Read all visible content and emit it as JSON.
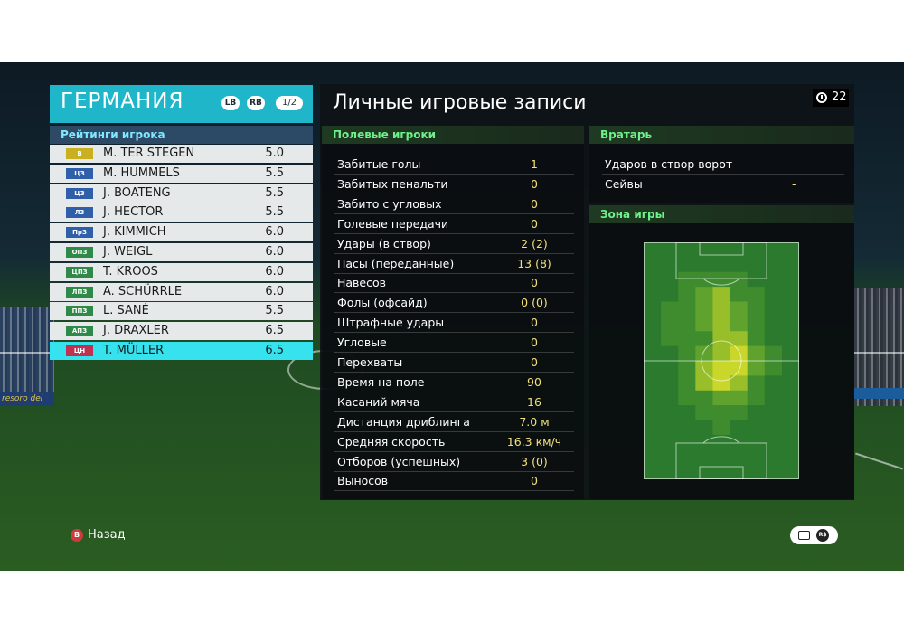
{
  "team": {
    "name": "ГЕРМАНИЯ",
    "lb_label": "LB",
    "rb_label": "RB",
    "page_indicator": "1/2"
  },
  "ratings_header": "Рейтинги игрока",
  "players": [
    {
      "pos": "В",
      "name": "M. TER STEGEN",
      "rating": "5.0",
      "pos_color": "#c8b020"
    },
    {
      "pos": "ЦЗ",
      "name": "M. HUMMELS",
      "rating": "5.5",
      "pos_color": "#2f5fa8"
    },
    {
      "pos": "ЦЗ",
      "name": "J. BOATENG",
      "rating": "5.5",
      "pos_color": "#2f5fa8"
    },
    {
      "pos": "ЛЗ",
      "name": "J. HECTOR",
      "rating": "5.5",
      "pos_color": "#2f5fa8"
    },
    {
      "pos": "ПрЗ",
      "name": "J. KIMMICH",
      "rating": "6.0",
      "pos_color": "#2f5fa8"
    },
    {
      "pos": "ОПЗ",
      "name": "J. WEIGL",
      "rating": "6.0",
      "pos_color": "#2f8a4a"
    },
    {
      "pos": "ЦПЗ",
      "name": "T. KROOS",
      "rating": "6.0",
      "pos_color": "#2f8a4a"
    },
    {
      "pos": "ЛПЗ",
      "name": "A. SCHÜRRLE",
      "rating": "6.0",
      "pos_color": "#2f8a4a"
    },
    {
      "pos": "ППЗ",
      "name": "L. SANÉ",
      "rating": "5.5",
      "pos_color": "#2f8a4a"
    },
    {
      "pos": "АПЗ",
      "name": "J. DRAXLER",
      "rating": "6.5",
      "pos_color": "#2f8a4a"
    },
    {
      "pos": "ЦН",
      "name": "T. MÜLLER",
      "rating": "6.5",
      "pos_color": "#c03050",
      "selected": true
    }
  ],
  "title": "Личные игровые записи",
  "timer": "22",
  "field_players": {
    "header": "Полевые игроки",
    "stats": [
      {
        "label": "Забитые голы",
        "value": "1"
      },
      {
        "label": "Забитых пенальти",
        "value": "0"
      },
      {
        "label": "Забито с угловых",
        "value": "0"
      },
      {
        "label": "Голевые передачи",
        "value": "0"
      },
      {
        "label": "Удары (в створ)",
        "value": "2 (2)"
      },
      {
        "label": "Пасы (переданные)",
        "value": "13 (8)"
      },
      {
        "label": "Навесов",
        "value": "0"
      },
      {
        "label": "Фолы (офсайд)",
        "value": "0 (0)"
      },
      {
        "label": "Штрафные удары",
        "value": "0"
      },
      {
        "label": "Угловые",
        "value": "0"
      },
      {
        "label": "Перехваты",
        "value": "0"
      },
      {
        "label": "Время на поле",
        "value": "90"
      },
      {
        "label": "Касаний мяча",
        "value": "16"
      },
      {
        "label": "Дистанция дриблинга",
        "value": "7.0 м"
      },
      {
        "label": "Средняя скорость",
        "value": "16.3 км/ч"
      },
      {
        "label": "Отборов (успешных)",
        "value": "3 (0)"
      },
      {
        "label": "Выносов",
        "value": "0"
      }
    ]
  },
  "goalkeeper": {
    "header": "Вратарь",
    "stats": [
      {
        "label": "Ударов в створ ворот",
        "value": "-"
      },
      {
        "label": "Сейвы",
        "value": "-"
      }
    ]
  },
  "zone": {
    "header": "Зона игры",
    "heatmap": [
      [
        0,
        0,
        0,
        0,
        0,
        0,
        0,
        0,
        0
      ],
      [
        0,
        0,
        0,
        0,
        0,
        0,
        0,
        0,
        0
      ],
      [
        0,
        0,
        1,
        1,
        1,
        1,
        0,
        0,
        0
      ],
      [
        0,
        0,
        1,
        2,
        3,
        1,
        1,
        0,
        0
      ],
      [
        0,
        1,
        1,
        2,
        3,
        2,
        1,
        0,
        0
      ],
      [
        0,
        1,
        1,
        2,
        3,
        2,
        1,
        0,
        0
      ],
      [
        0,
        1,
        1,
        1,
        3,
        3,
        1,
        0,
        0
      ],
      [
        0,
        0,
        1,
        2,
        3,
        4,
        2,
        1,
        0
      ],
      [
        0,
        0,
        1,
        3,
        4,
        4,
        2,
        1,
        0
      ],
      [
        0,
        0,
        1,
        3,
        4,
        3,
        1,
        0,
        0
      ],
      [
        0,
        0,
        1,
        1,
        2,
        2,
        1,
        0,
        0
      ],
      [
        0,
        0,
        0,
        1,
        1,
        1,
        0,
        0,
        0
      ],
      [
        0,
        0,
        0,
        0,
        1,
        0,
        0,
        0,
        0
      ],
      [
        0,
        0,
        0,
        0,
        0,
        0,
        0,
        0,
        0
      ],
      [
        0,
        0,
        0,
        0,
        0,
        0,
        0,
        0,
        0
      ],
      [
        0,
        0,
        0,
        0,
        0,
        0,
        0,
        0,
        0
      ]
    ]
  },
  "footer": {
    "back_button": "B",
    "back_label": "Назад",
    "rs_label": "R$"
  },
  "stadium": {
    "ad_text": "resoro del"
  }
}
